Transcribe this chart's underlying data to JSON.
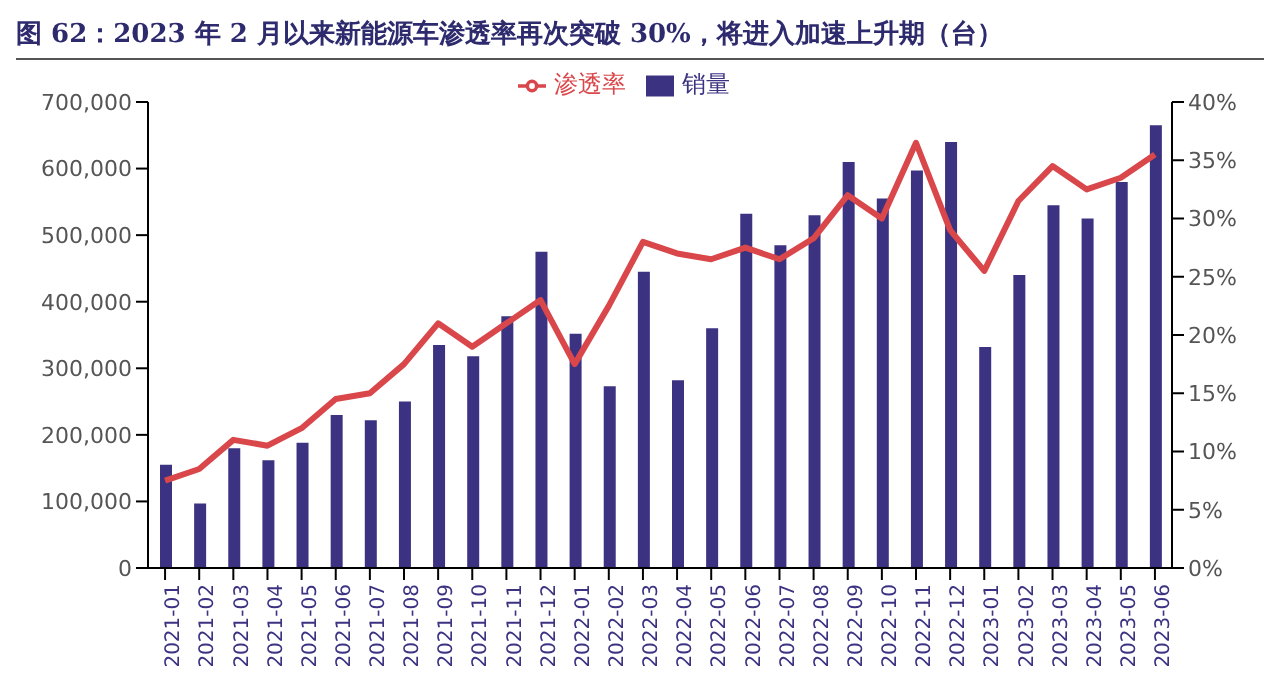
{
  "chart_data": {
    "type": "bar",
    "title": "图 62：2023 年 2 月以来新能源车渗透率再次突破 30%，将进入加速上升期（台）",
    "categories": [
      "2021-01",
      "2021-02",
      "2021-03",
      "2021-04",
      "2021-05",
      "2021-06",
      "2021-07",
      "2021-08",
      "2021-09",
      "2021-10",
      "2021-11",
      "2021-12",
      "2022-01",
      "2022-02",
      "2022-03",
      "2022-04",
      "2022-05",
      "2022-06",
      "2022-07",
      "2022-08",
      "2022-09",
      "2022-10",
      "2022-11",
      "2022-12",
      "2023-01",
      "2023-02",
      "2023-03",
      "2023-04",
      "2023-05",
      "2023-06"
    ],
    "series": [
      {
        "name": "销量",
        "color": "#3b3282",
        "values": [
          155000,
          97000,
          180000,
          162000,
          188000,
          230000,
          222000,
          250000,
          335000,
          318000,
          378000,
          475000,
          352000,
          273000,
          445000,
          282000,
          360000,
          532000,
          485000,
          530000,
          610000,
          555000,
          597000,
          640000,
          332000,
          440000,
          545000,
          525000,
          580000,
          665000
        ]
      },
      {
        "name": "渗透率",
        "type": "line",
        "axis": "y2",
        "color": "#d9474b",
        "values": [
          7.5,
          8.5,
          11,
          10.5,
          12,
          14.5,
          15,
          17.5,
          21,
          19,
          21,
          23,
          17.5,
          22.5,
          28,
          27,
          26.5,
          27.5,
          26.5,
          28.3,
          32,
          30,
          36.5,
          29,
          25.5,
          31.5,
          34.5,
          32.5,
          33.5,
          35.5
        ]
      }
    ],
    "ylim": [
      0,
      700000
    ],
    "yticks": [
      {
        "value": 0,
        "label": "0"
      },
      {
        "value": 100000,
        "label": "100,000"
      },
      {
        "value": 200000,
        "label": "200,000"
      },
      {
        "value": 300000,
        "label": "300,000"
      },
      {
        "value": 400000,
        "label": "400,000"
      },
      {
        "value": 500000,
        "label": "500,000"
      },
      {
        "value": 600000,
        "label": "600,000"
      },
      {
        "value": 700000,
        "label": "700,000"
      }
    ],
    "y2lim": [
      0,
      40
    ],
    "y2ticks": [
      {
        "value": 0,
        "label": "0%"
      },
      {
        "value": 5,
        "label": "5%"
      },
      {
        "value": 10,
        "label": "10%"
      },
      {
        "value": 15,
        "label": "15%"
      },
      {
        "value": 20,
        "label": "20%"
      },
      {
        "value": 25,
        "label": "25%"
      },
      {
        "value": 30,
        "label": "30%"
      },
      {
        "value": 35,
        "label": "35%"
      },
      {
        "value": 40,
        "label": "40%"
      }
    ],
    "grid": false,
    "legend": "top",
    "marker": "none",
    "line_style": "solid"
  }
}
